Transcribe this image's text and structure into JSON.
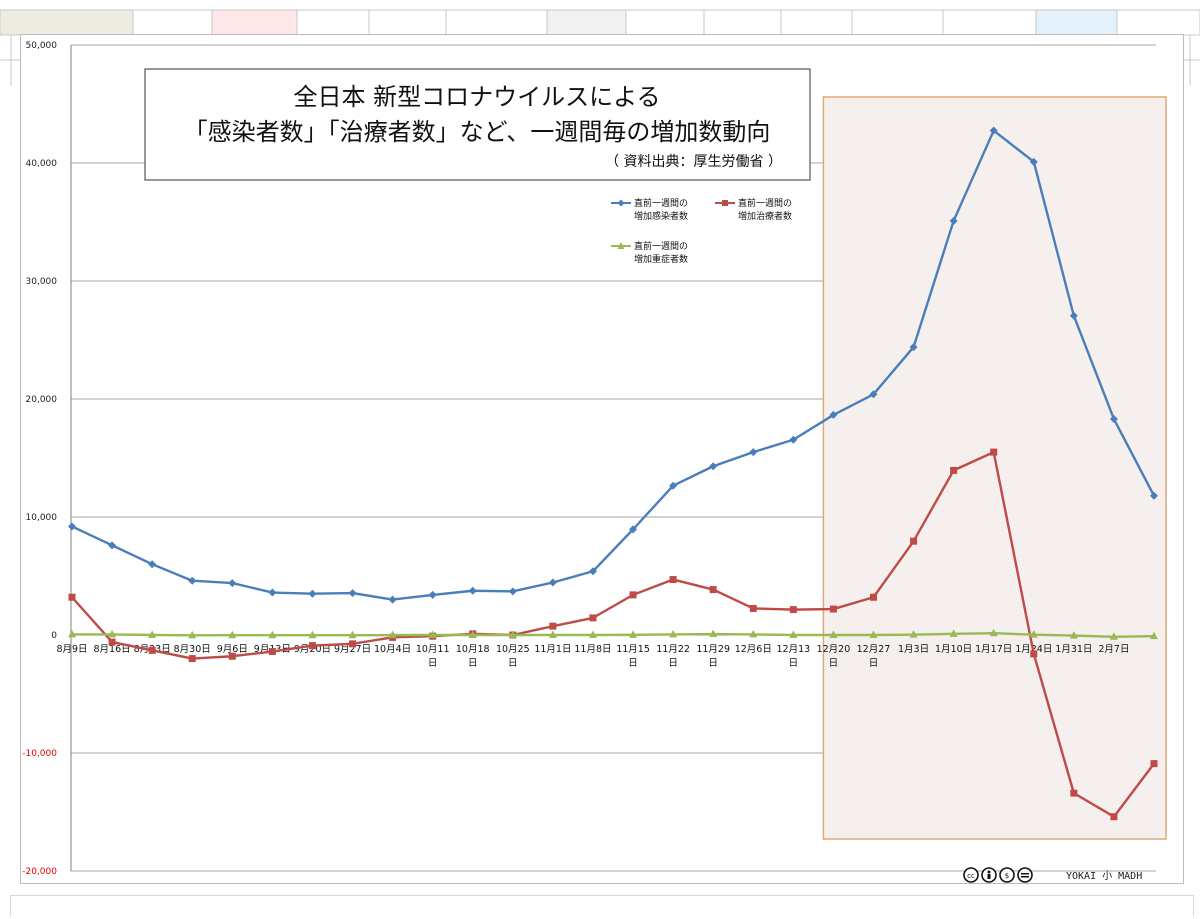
{
  "colors": {
    "infected": "#4a7ebb",
    "recovered": "#be4b48",
    "severe": "#98b954",
    "highlight_fill": "#f5f0ee",
    "highlight_border": "#e0a876",
    "negative_axis_label": "#e00000"
  },
  "title": {
    "line1": "全日本  新型コロナウイルスによる",
    "line2": "「感染者数」「治療者数」など、一週間毎の増加数動向",
    "source": "（ 資料出典：厚生労働省 ）"
  },
  "credit": {
    "license_icons": "cc-by-nc-nd-icons",
    "brand": "YOKAI 小 MADH"
  },
  "chart_data": {
    "type": "line",
    "ylim": [
      -20000,
      50000
    ],
    "yticks": [
      -20000,
      -10000,
      0,
      10000,
      20000,
      30000,
      40000,
      50000
    ],
    "ytick_labels": [
      "-20,000",
      "-10,000",
      "0",
      "10,000",
      "20,000",
      "30,000",
      "40,000",
      "50,000"
    ],
    "categories": [
      [
        "8月9日"
      ],
      [
        "8月16日"
      ],
      [
        "8月23日"
      ],
      [
        "8月30日"
      ],
      [
        "9月6日"
      ],
      [
        "9月13日"
      ],
      [
        "9月20日"
      ],
      [
        "9月27日"
      ],
      [
        "10月4日"
      ],
      [
        "10月11",
        "日"
      ],
      [
        "10月18",
        "日"
      ],
      [
        "10月25",
        "日"
      ],
      [
        "11月1日"
      ],
      [
        "11月8日"
      ],
      [
        "11月15",
        "日"
      ],
      [
        "11月22",
        "日"
      ],
      [
        "11月29",
        "日"
      ],
      [
        "12月6日"
      ],
      [
        "12月13",
        "日"
      ],
      [
        "12月20",
        "日"
      ],
      [
        "12月27",
        "日"
      ],
      [
        "1月3日"
      ],
      [
        "1月10日"
      ],
      [
        "1月17日"
      ],
      [
        "1月24日"
      ],
      [
        "1月31日"
      ],
      [
        "2月7日"
      ],
      [
        ""
      ]
    ],
    "series": [
      {
        "name": "直前一週間の\n増加感染者数",
        "marker": "diamond",
        "color": "#4a7ebb",
        "values": [
          9200,
          7600,
          6000,
          4600,
          4400,
          3600,
          3500,
          3550,
          3000,
          3400,
          3750,
          3700,
          4450,
          5400,
          8950,
          12650,
          14300,
          15500,
          16550,
          18650,
          20400,
          24400,
          35100,
          42750,
          40100,
          27050,
          18300,
          11800
        ]
      },
      {
        "name": "直前一週間の\n増加治療者数",
        "marker": "square",
        "color": "#be4b48",
        "values": [
          3200,
          -600,
          -1300,
          -2000,
          -1800,
          -1400,
          -900,
          -750,
          -200,
          -100,
          100,
          0,
          750,
          1450,
          3400,
          4700,
          3850,
          2250,
          2150,
          2200,
          3200,
          7950,
          13950,
          15500,
          -1600,
          -13400,
          -15400,
          -10900
        ]
      },
      {
        "name": "直前一週間の\n増加重症者数",
        "marker": "triangle",
        "color": "#98b954",
        "values": [
          50,
          50,
          0,
          -30,
          -20,
          -20,
          -20,
          -20,
          -10,
          0,
          0,
          0,
          0,
          0,
          10,
          50,
          80,
          50,
          0,
          0,
          0,
          30,
          100,
          150,
          30,
          -50,
          -150,
          -100
        ]
      }
    ],
    "highlight_region": {
      "from_category": "12月20日",
      "to_category": "end"
    },
    "grid": true,
    "legend_position": "top-right-inside"
  }
}
